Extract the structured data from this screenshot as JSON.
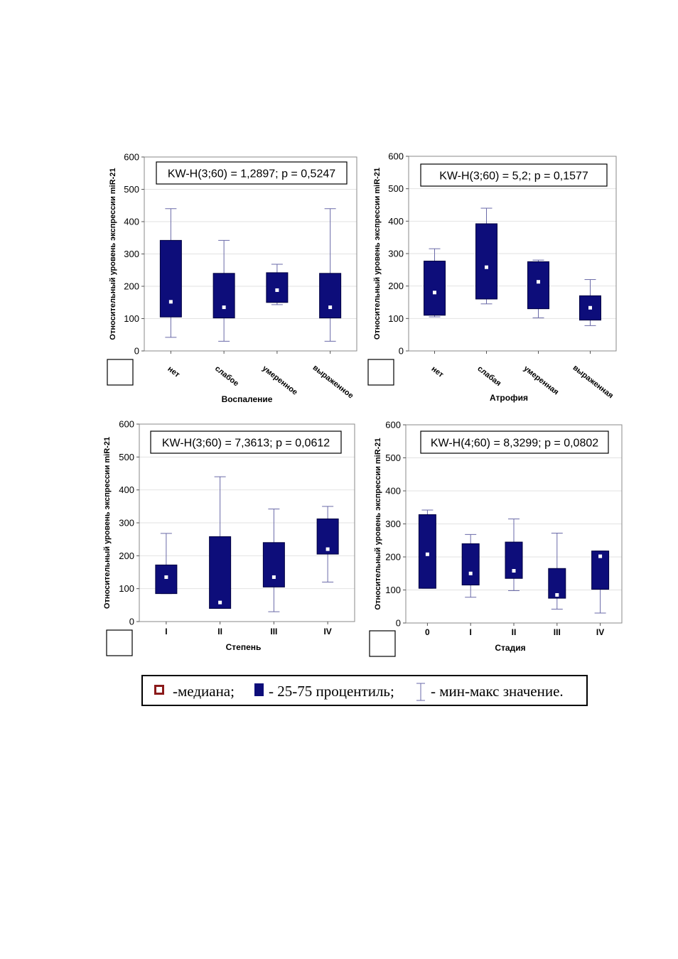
{
  "chart_data": [
    {
      "type": "boxplot",
      "stat_label": "KW-H(3;60) = 1,2897; p = 0,5247",
      "xlabel": "Воспаление",
      "ylabel": "Относительный уровень экспрессии miR-21",
      "ylim": [
        0,
        600
      ],
      "yticks": [
        0,
        100,
        200,
        300,
        400,
        500,
        600
      ],
      "tick_rotated": true,
      "categories": [
        "нет",
        "слабое",
        "умеренное",
        "выраженное"
      ],
      "min": [
        42,
        30,
        143,
        30
      ],
      "q1": [
        105,
        102,
        150,
        102
      ],
      "median": [
        152,
        135,
        188,
        135
      ],
      "q3": [
        342,
        240,
        242,
        240
      ],
      "max": [
        440,
        342,
        268,
        440
      ]
    },
    {
      "type": "boxplot",
      "stat_label": "KW-H(3;60) = 5,2; p = 0,1577",
      "xlabel": "Атрофия",
      "ylabel": "Относительный уровень экспрессии miR-21",
      "ylim": [
        0,
        600
      ],
      "yticks": [
        0,
        100,
        200,
        300,
        400,
        500,
        600
      ],
      "tick_rotated": true,
      "categories": [
        "нет",
        "слабая",
        "умеренная",
        "выраженная"
      ],
      "min": [
        105,
        145,
        102,
        78
      ],
      "q1": [
        110,
        160,
        130,
        95
      ],
      "median": [
        180,
        258,
        213,
        133
      ],
      "q3": [
        277,
        392,
        275,
        170
      ],
      "max": [
        315,
        440,
        280,
        220
      ]
    },
    {
      "type": "boxplot",
      "stat_label": "KW-H(3;60) = 7,3613; p = 0,0612",
      "xlabel": "Степень",
      "ylabel": "Относительный уровень экспрессии miR-21",
      "ylim": [
        0,
        600
      ],
      "yticks": [
        0,
        100,
        200,
        300,
        400,
        500,
        600
      ],
      "tick_rotated": false,
      "categories": [
        "I",
        "II",
        "III",
        "IV"
      ],
      "min": [
        85,
        40,
        30,
        120
      ],
      "q1": [
        85,
        40,
        105,
        205
      ],
      "median": [
        135,
        58,
        135,
        220
      ],
      "q3": [
        172,
        258,
        240,
        312
      ],
      "max": [
        268,
        440,
        342,
        350
      ]
    },
    {
      "type": "boxplot",
      "stat_label": "KW-H(4;60) = 8,3299; p = 0,0802",
      "xlabel": "Стадия",
      "ylabel": "Относительный уровень экспрессии miR-21",
      "ylim": [
        0,
        600
      ],
      "yticks": [
        0,
        100,
        200,
        300,
        400,
        500,
        600
      ],
      "tick_rotated": false,
      "categories": [
        "0",
        "I",
        "II",
        "III",
        "IV"
      ],
      "min": [
        105,
        78,
        98,
        42,
        30
      ],
      "q1": [
        105,
        115,
        135,
        75,
        102
      ],
      "median": [
        208,
        150,
        158,
        85,
        202
      ],
      "q3": [
        328,
        240,
        245,
        165,
        218
      ],
      "max": [
        342,
        268,
        315,
        272,
        218
      ]
    }
  ],
  "legend": {
    "median_label": "-медиана;",
    "iqr_label": "- 25-75 процентиль;",
    "whisker_label": "- мин-макс значение."
  },
  "colors": {
    "box_fill": "#0d0d7a",
    "whisker": "#6a6aa8",
    "median_marker": "#ffffff",
    "legend_median_border": "#8b1a1a",
    "gridline": "#e2e2e2"
  }
}
